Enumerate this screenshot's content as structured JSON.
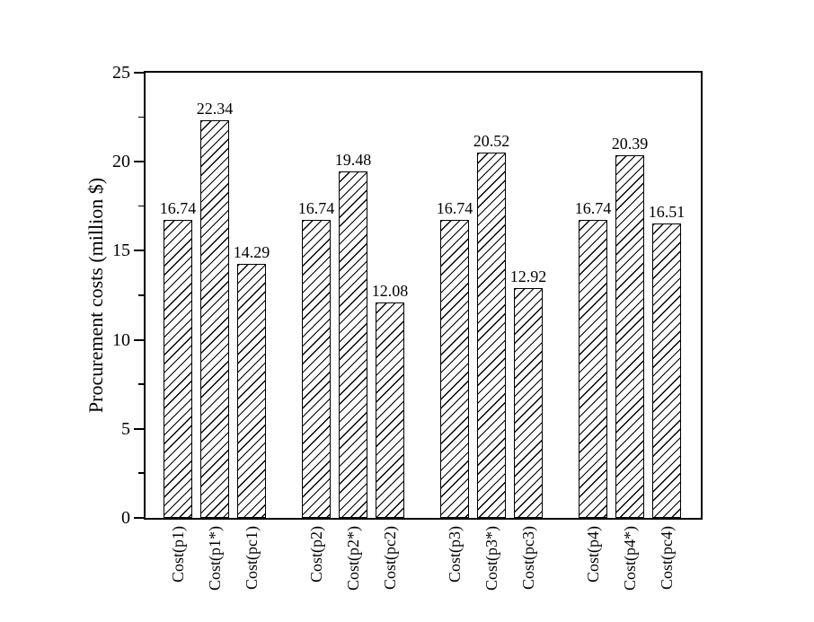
{
  "figure": {
    "background": "#ffffff",
    "ink_color": "#000000"
  },
  "chart_data": {
    "type": "bar",
    "title": "",
    "xlabel": "",
    "ylabel": "Procurement costs (million $)",
    "ylim": [
      0,
      25
    ],
    "yticks_major": [
      0,
      5,
      10,
      15,
      20,
      25
    ],
    "yticks_minor": [
      2.5,
      7.5,
      12.5,
      17.5,
      22.5
    ],
    "categories": [
      "Cost(p1)",
      "Cost(p1*)",
      "Cost(pc1)",
      "Cost(p2)",
      "Cost(p2*)",
      "Cost(pc2)",
      "Cost(p3)",
      "Cost(p3*)",
      "Cost(pc3)",
      "Cost(p4)",
      "Cost(p4*)",
      "Cost(pc4)"
    ],
    "values": [
      16.74,
      22.34,
      14.29,
      16.74,
      19.48,
      12.08,
      16.74,
      20.52,
      12.92,
      16.74,
      20.39,
      16.51
    ],
    "value_labels": [
      "16.74",
      "22.34",
      "14.29",
      "16.74",
      "19.48",
      "12.08",
      "16.74",
      "20.52",
      "12.92",
      "16.74",
      "20.39",
      "16.51"
    ],
    "group_size": 3,
    "grid": false,
    "legend": null,
    "frame": true,
    "bar_fill": "#ffffff",
    "bar_edge": "#000000",
    "hatch": "forward-diagonal"
  }
}
